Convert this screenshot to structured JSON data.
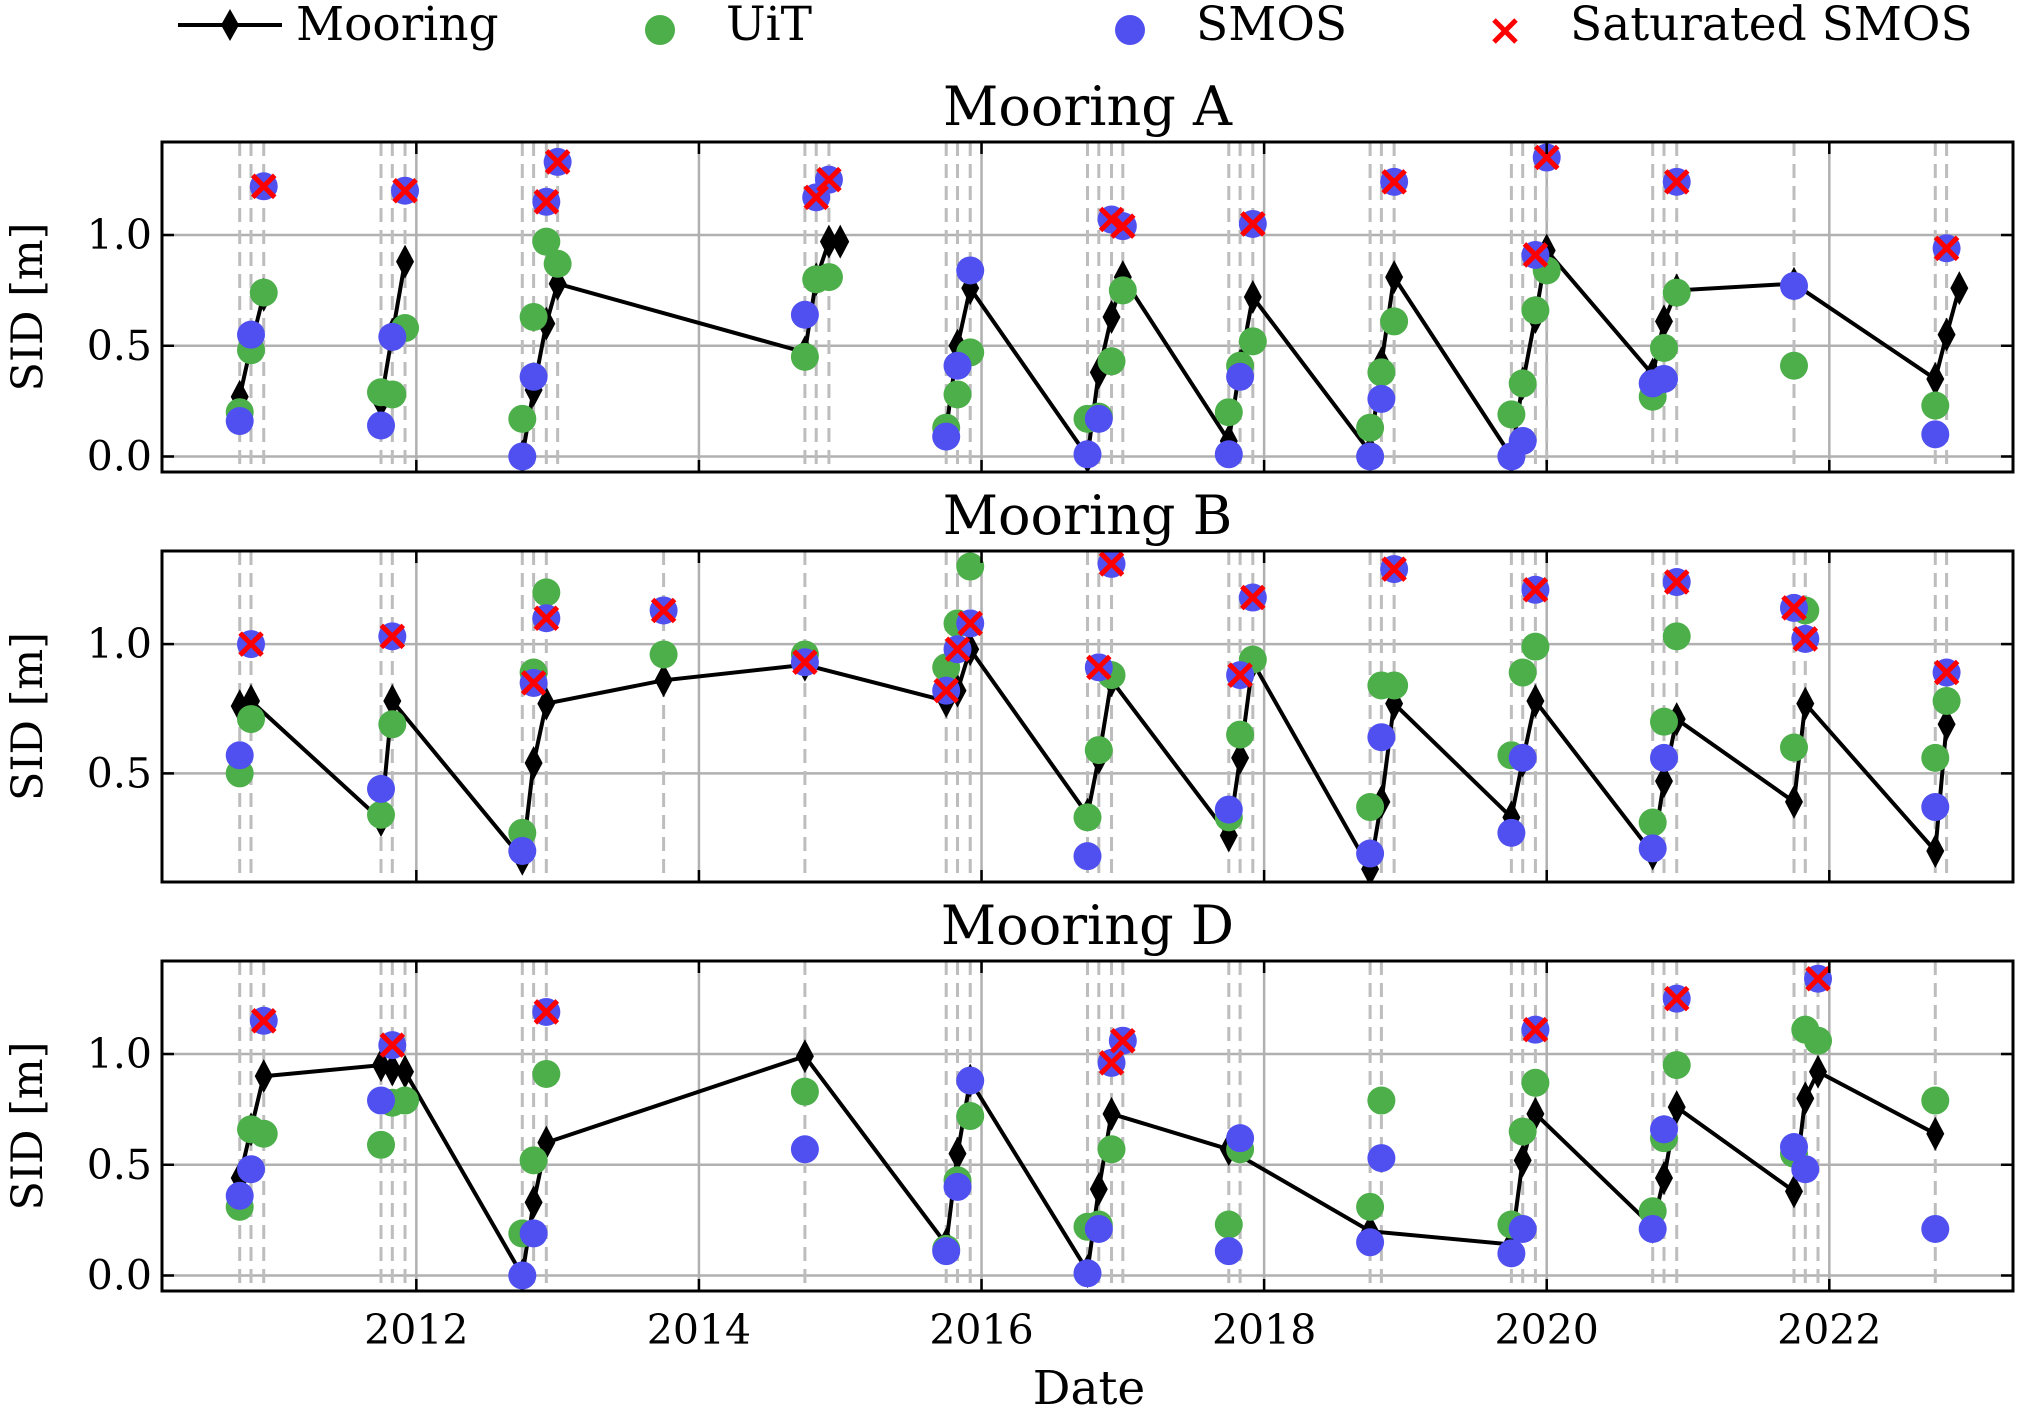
{
  "figure": {
    "xlabel": "Date",
    "colors": {
      "mooring": "#000000",
      "uit": "#4daf4a",
      "smos": "#5050f0",
      "saturated": "#ff0000",
      "grid": "#b0b0b0",
      "vline": "#bdbdbd"
    },
    "legend": {
      "placement": "top",
      "entries": [
        {
          "key": "mooring",
          "label": "Mooring"
        },
        {
          "key": "uit",
          "label": "UiT"
        },
        {
          "key": "smos",
          "label": "SMOS"
        },
        {
          "key": "saturated",
          "label": "Saturated SMOS"
        }
      ]
    }
  },
  "chart_data": [
    {
      "type": "scatter",
      "title": "Mooring A",
      "xlabel": "",
      "ylabel": "SID [m]",
      "xlim": [
        2010.2,
        2023.3
      ],
      "ylim": [
        -0.07,
        1.42
      ],
      "xticks": [
        2012,
        2014,
        2016,
        2018,
        2020,
        2022
      ],
      "xtick_labels": [],
      "yticks": [
        0.0,
        0.5,
        1.0
      ],
      "ytick_labels": [
        "0.0",
        "0.5",
        "1.0"
      ],
      "grid": true,
      "mooring": [
        {
          "x": [
            2010.75,
            2010.83,
            2010.92
          ],
          "y": [
            0.27,
            0.5,
            0.73
          ]
        },
        {
          "x": [
            2011.75,
            2011.83,
            2011.92
          ],
          "y": [
            0.25,
            0.55,
            0.88
          ]
        },
        {
          "x": [
            2012.75,
            2012.83,
            2012.92,
            2013.0,
            2014.75,
            2014.83,
            2014.92,
            2015.0
          ],
          "y": [
            0.0,
            0.3,
            0.6,
            0.78,
            0.47,
            0.8,
            0.97,
            0.97
          ]
        },
        {
          "x": [
            2015.75,
            2015.83,
            2015.92,
            2016.75,
            2016.83,
            2016.92,
            2017.0,
            2017.75,
            2017.83,
            2017.92,
            2018.75,
            2018.83,
            2018.92,
            2019.75,
            2019.83,
            2019.92,
            2020.0,
            2020.75,
            2020.83,
            2020.92,
            2021.75,
            2022.75,
            2022.83,
            2022.92
          ],
          "y": [
            0.12,
            0.5,
            0.76,
            0.0,
            0.38,
            0.63,
            0.81,
            0.07,
            0.41,
            0.72,
            0.02,
            0.42,
            0.81,
            0.0,
            0.33,
            0.63,
            0.93,
            0.37,
            0.61,
            0.75,
            0.78,
            0.35,
            0.55,
            0.76
          ]
        }
      ],
      "uit": {
        "x": [
          2010.75,
          2010.83,
          2010.92,
          2011.75,
          2011.83,
          2011.92,
          2012.75,
          2012.83,
          2012.92,
          2013.0,
          2014.75,
          2014.83,
          2014.92,
          2015.75,
          2015.83,
          2015.92,
          2016.75,
          2016.83,
          2016.92,
          2017.0,
          2017.75,
          2017.83,
          2017.92,
          2018.75,
          2018.83,
          2018.92,
          2019.75,
          2019.83,
          2019.92,
          2020.0,
          2020.75,
          2020.83,
          2020.92,
          2021.75,
          2022.75
        ],
        "y": [
          0.2,
          0.48,
          0.74,
          0.29,
          0.28,
          0.58,
          0.17,
          0.63,
          0.97,
          0.87,
          0.45,
          0.8,
          0.81,
          0.13,
          0.28,
          0.47,
          0.17,
          0.18,
          0.43,
          0.75,
          0.2,
          0.41,
          0.52,
          0.13,
          0.38,
          0.61,
          0.19,
          0.33,
          0.66,
          0.84,
          0.27,
          0.49,
          0.74,
          0.41,
          0.23
        ]
      },
      "smos": {
        "x": [
          2010.75,
          2010.83,
          2010.92,
          2011.75,
          2011.83,
          2011.92,
          2012.75,
          2012.83,
          2012.92,
          2013.0,
          2014.75,
          2014.83,
          2014.92,
          2015.75,
          2015.83,
          2015.92,
          2016.75,
          2016.83,
          2016.92,
          2017.0,
          2017.75,
          2017.83,
          2017.92,
          2018.75,
          2018.83,
          2018.92,
          2019.75,
          2019.83,
          2019.92,
          2020.0,
          2020.75,
          2020.83,
          2020.92,
          2021.75,
          2022.75,
          2022.83
        ],
        "y": [
          0.16,
          0.55,
          1.22,
          0.14,
          0.54,
          1.2,
          0.0,
          0.36,
          1.15,
          1.33,
          0.64,
          1.17,
          1.25,
          0.09,
          0.41,
          0.84,
          0.01,
          0.17,
          1.07,
          1.04,
          0.01,
          0.36,
          1.05,
          0.0,
          0.26,
          1.24,
          0.0,
          0.07,
          0.91,
          1.35,
          0.33,
          0.35,
          1.24,
          0.77,
          0.1,
          0.94
        ]
      },
      "saturated": {
        "x": [
          2010.92,
          2011.92,
          2012.92,
          2013.0,
          2014.83,
          2014.92,
          2016.92,
          2017.0,
          2017.92,
          2018.92,
          2019.92,
          2020.0,
          2020.92,
          2022.83
        ],
        "y": [
          1.22,
          1.2,
          1.15,
          1.33,
          1.17,
          1.25,
          1.07,
          1.04,
          1.05,
          1.24,
          0.91,
          1.35,
          1.24,
          0.94
        ]
      },
      "obs_dates": [
        2010.75,
        2010.83,
        2010.92,
        2011.75,
        2011.83,
        2011.92,
        2012.75,
        2012.83,
        2012.92,
        2013.0,
        2014.75,
        2014.83,
        2014.92,
        2015.75,
        2015.83,
        2015.92,
        2016.75,
        2016.83,
        2016.92,
        2017.0,
        2017.75,
        2017.83,
        2017.92,
        2018.75,
        2018.83,
        2018.92,
        2019.75,
        2019.83,
        2019.92,
        2020.0,
        2020.75,
        2020.83,
        2020.92,
        2021.75,
        2022.75,
        2022.83
      ]
    },
    {
      "type": "scatter",
      "title": "Mooring B",
      "xlabel": "",
      "ylabel": "SID [m]",
      "xlim": [
        2010.2,
        2023.3
      ],
      "ylim": [
        0.08,
        1.36
      ],
      "xticks": [
        2012,
        2014,
        2016,
        2018,
        2020,
        2022
      ],
      "xtick_labels": [],
      "yticks": [
        0.5,
        1.0
      ],
      "ytick_labels": [
        "0.5",
        "1.0"
      ],
      "grid": true,
      "mooring": [
        {
          "x": [
            2010.75,
            2010.83,
            2011.75,
            2011.83,
            2012.75,
            2012.83,
            2012.92,
            2013.75,
            2014.75,
            2015.75,
            2015.83,
            2015.92,
            2016.75,
            2016.83,
            2016.92,
            2017.75,
            2017.83,
            2017.92,
            2018.75,
            2018.83,
            2018.92,
            2019.75,
            2019.83,
            2019.92,
            2020.75,
            2020.83,
            2020.92,
            2021.75,
            2021.83,
            2022.75,
            2022.83
          ],
          "y": [
            0.76,
            0.78,
            0.32,
            0.78,
            0.17,
            0.54,
            0.77,
            0.86,
            0.92,
            0.78,
            0.82,
            0.98,
            0.34,
            0.56,
            0.86,
            0.26,
            0.56,
            0.93,
            0.13,
            0.39,
            0.77,
            0.33,
            0.55,
            0.78,
            0.19,
            0.47,
            0.71,
            0.39,
            0.77,
            0.2,
            0.69
          ]
        }
      ],
      "uit": {
        "x": [
          2010.75,
          2010.83,
          2011.75,
          2011.83,
          2012.75,
          2012.83,
          2012.92,
          2013.75,
          2014.75,
          2015.75,
          2015.83,
          2015.92,
          2016.75,
          2016.83,
          2016.92,
          2017.75,
          2017.83,
          2017.92,
          2018.75,
          2018.83,
          2018.92,
          2019.75,
          2019.83,
          2019.92,
          2020.75,
          2020.83,
          2020.92,
          2021.75,
          2021.83,
          2022.75,
          2022.83
        ],
        "y": [
          0.5,
          0.71,
          0.34,
          0.69,
          0.27,
          0.89,
          1.2,
          0.96,
          0.96,
          0.91,
          1.08,
          1.3,
          0.33,
          0.59,
          0.88,
          0.33,
          0.65,
          0.94,
          0.37,
          0.84,
          0.84,
          0.57,
          0.89,
          0.99,
          0.31,
          0.7,
          1.03,
          0.6,
          1.13,
          0.56,
          0.78
        ]
      },
      "smos": {
        "x": [
          2010.75,
          2010.83,
          2011.75,
          2011.83,
          2012.75,
          2012.83,
          2012.92,
          2013.75,
          2014.75,
          2015.75,
          2015.83,
          2015.92,
          2016.75,
          2016.83,
          2016.92,
          2017.75,
          2017.83,
          2017.92,
          2018.75,
          2018.83,
          2018.92,
          2019.75,
          2019.83,
          2019.92,
          2020.75,
          2020.83,
          2020.92,
          2021.75,
          2021.83,
          2022.75,
          2022.83
        ],
        "y": [
          0.57,
          1.0,
          0.44,
          1.03,
          0.2,
          0.85,
          1.1,
          1.13,
          0.93,
          0.82,
          0.98,
          1.08,
          0.18,
          0.91,
          1.31,
          0.36,
          0.88,
          1.18,
          0.19,
          0.64,
          1.29,
          0.27,
          0.56,
          1.21,
          0.21,
          0.56,
          1.24,
          1.14,
          1.02,
          0.37,
          0.89
        ]
      },
      "saturated": {
        "x": [
          2010.83,
          2011.83,
          2012.83,
          2012.92,
          2013.75,
          2014.75,
          2015.75,
          2015.83,
          2015.92,
          2016.83,
          2016.92,
          2017.83,
          2017.92,
          2018.92,
          2019.92,
          2020.92,
          2021.75,
          2021.83,
          2022.83
        ],
        "y": [
          1.0,
          1.03,
          0.85,
          1.1,
          1.13,
          0.93,
          0.82,
          0.98,
          1.08,
          0.91,
          1.31,
          0.88,
          1.18,
          1.29,
          1.21,
          1.24,
          1.14,
          1.02,
          0.89
        ]
      },
      "obs_dates": [
        2010.75,
        2010.83,
        2011.75,
        2011.83,
        2012.75,
        2012.83,
        2012.92,
        2013.75,
        2014.75,
        2015.75,
        2015.83,
        2015.92,
        2016.75,
        2016.83,
        2016.92,
        2017.75,
        2017.83,
        2017.92,
        2018.75,
        2018.83,
        2018.92,
        2019.75,
        2019.83,
        2019.92,
        2020.75,
        2020.83,
        2020.92,
        2021.75,
        2021.83,
        2022.75,
        2022.83
      ]
    },
    {
      "type": "scatter",
      "title": "Mooring D",
      "xlabel": "Date",
      "ylabel": "SID [m]",
      "xlim": [
        2010.2,
        2023.3
      ],
      "ylim": [
        -0.07,
        1.42
      ],
      "xticks": [
        2012,
        2014,
        2016,
        2018,
        2020,
        2022
      ],
      "xtick_labels": [
        "2012",
        "2014",
        "2016",
        "2018",
        "2020",
        "2022"
      ],
      "yticks": [
        0.0,
        0.5,
        1.0
      ],
      "ytick_labels": [
        "0.0",
        "0.5",
        "1.0"
      ],
      "grid": true,
      "mooring": [
        {
          "x": [
            2010.75,
            2010.83,
            2010.92,
            2011.75,
            2011.83,
            2011.92,
            2012.75,
            2012.83,
            2012.92,
            2014.75,
            2015.75,
            2015.83,
            2015.92,
            2016.75,
            2016.83,
            2016.92,
            2017.75,
            2018.75,
            2019.75,
            2019.83,
            2019.92,
            2020.75,
            2020.83,
            2020.92,
            2021.75,
            2021.83,
            2021.92,
            2022.75
          ],
          "y": [
            0.44,
            0.66,
            0.9,
            0.95,
            0.93,
            0.92,
            0.0,
            0.33,
            0.6,
            0.99,
            0.14,
            0.55,
            0.88,
            0.02,
            0.39,
            0.73,
            0.57,
            0.2,
            0.14,
            0.52,
            0.73,
            0.22,
            0.44,
            0.76,
            0.38,
            0.8,
            0.92,
            0.64
          ]
        }
      ],
      "uit": {
        "x": [
          2010.75,
          2010.83,
          2010.92,
          2011.75,
          2011.83,
          2011.92,
          2012.75,
          2012.83,
          2012.92,
          2014.75,
          2015.75,
          2015.83,
          2015.92,
          2016.75,
          2016.83,
          2016.92,
          2017.75,
          2017.83,
          2018.75,
          2018.83,
          2019.75,
          2019.83,
          2019.92,
          2020.75,
          2020.83,
          2020.92,
          2021.75,
          2021.83,
          2021.92,
          2022.75
        ],
        "y": [
          0.31,
          0.66,
          0.64,
          0.59,
          0.78,
          0.79,
          0.19,
          0.52,
          0.91,
          0.83,
          0.12,
          0.43,
          0.72,
          0.22,
          0.23,
          0.57,
          0.23,
          0.57,
          0.31,
          0.79,
          0.23,
          0.65,
          0.87,
          0.29,
          0.62,
          0.95,
          0.55,
          1.11,
          1.06,
          0.79
        ]
      },
      "smos": {
        "x": [
          2010.75,
          2010.83,
          2010.92,
          2011.75,
          2011.83,
          2012.75,
          2012.83,
          2012.92,
          2014.75,
          2015.75,
          2015.83,
          2015.92,
          2016.75,
          2016.83,
          2016.92,
          2017.0,
          2017.75,
          2017.83,
          2018.75,
          2018.83,
          2019.75,
          2019.83,
          2019.92,
          2020.75,
          2020.83,
          2020.92,
          2021.75,
          2021.83,
          2021.92,
          2022.75
        ],
        "y": [
          0.36,
          0.48,
          1.15,
          0.79,
          1.04,
          0.0,
          0.19,
          1.19,
          0.57,
          0.11,
          0.4,
          0.88,
          0.01,
          0.21,
          0.96,
          1.06,
          0.11,
          0.62,
          0.15,
          0.53,
          0.1,
          0.21,
          1.11,
          0.21,
          0.66,
          1.25,
          0.58,
          0.48,
          1.34,
          0.21
        ]
      },
      "saturated": {
        "x": [
          2010.92,
          2011.83,
          2012.92,
          2016.92,
          2017.0,
          2019.92,
          2020.92,
          2021.92
        ],
        "y": [
          1.15,
          1.04,
          1.19,
          0.96,
          1.06,
          1.11,
          1.25,
          1.34
        ]
      },
      "obs_dates": [
        2010.75,
        2010.83,
        2010.92,
        2011.75,
        2011.83,
        2011.92,
        2012.75,
        2012.83,
        2012.92,
        2014.75,
        2015.75,
        2015.83,
        2015.92,
        2016.75,
        2016.83,
        2016.92,
        2017.0,
        2017.75,
        2017.83,
        2018.75,
        2018.83,
        2019.75,
        2019.83,
        2019.92,
        2020.75,
        2020.83,
        2020.92,
        2021.75,
        2021.83,
        2021.92,
        2022.75
      ]
    }
  ]
}
